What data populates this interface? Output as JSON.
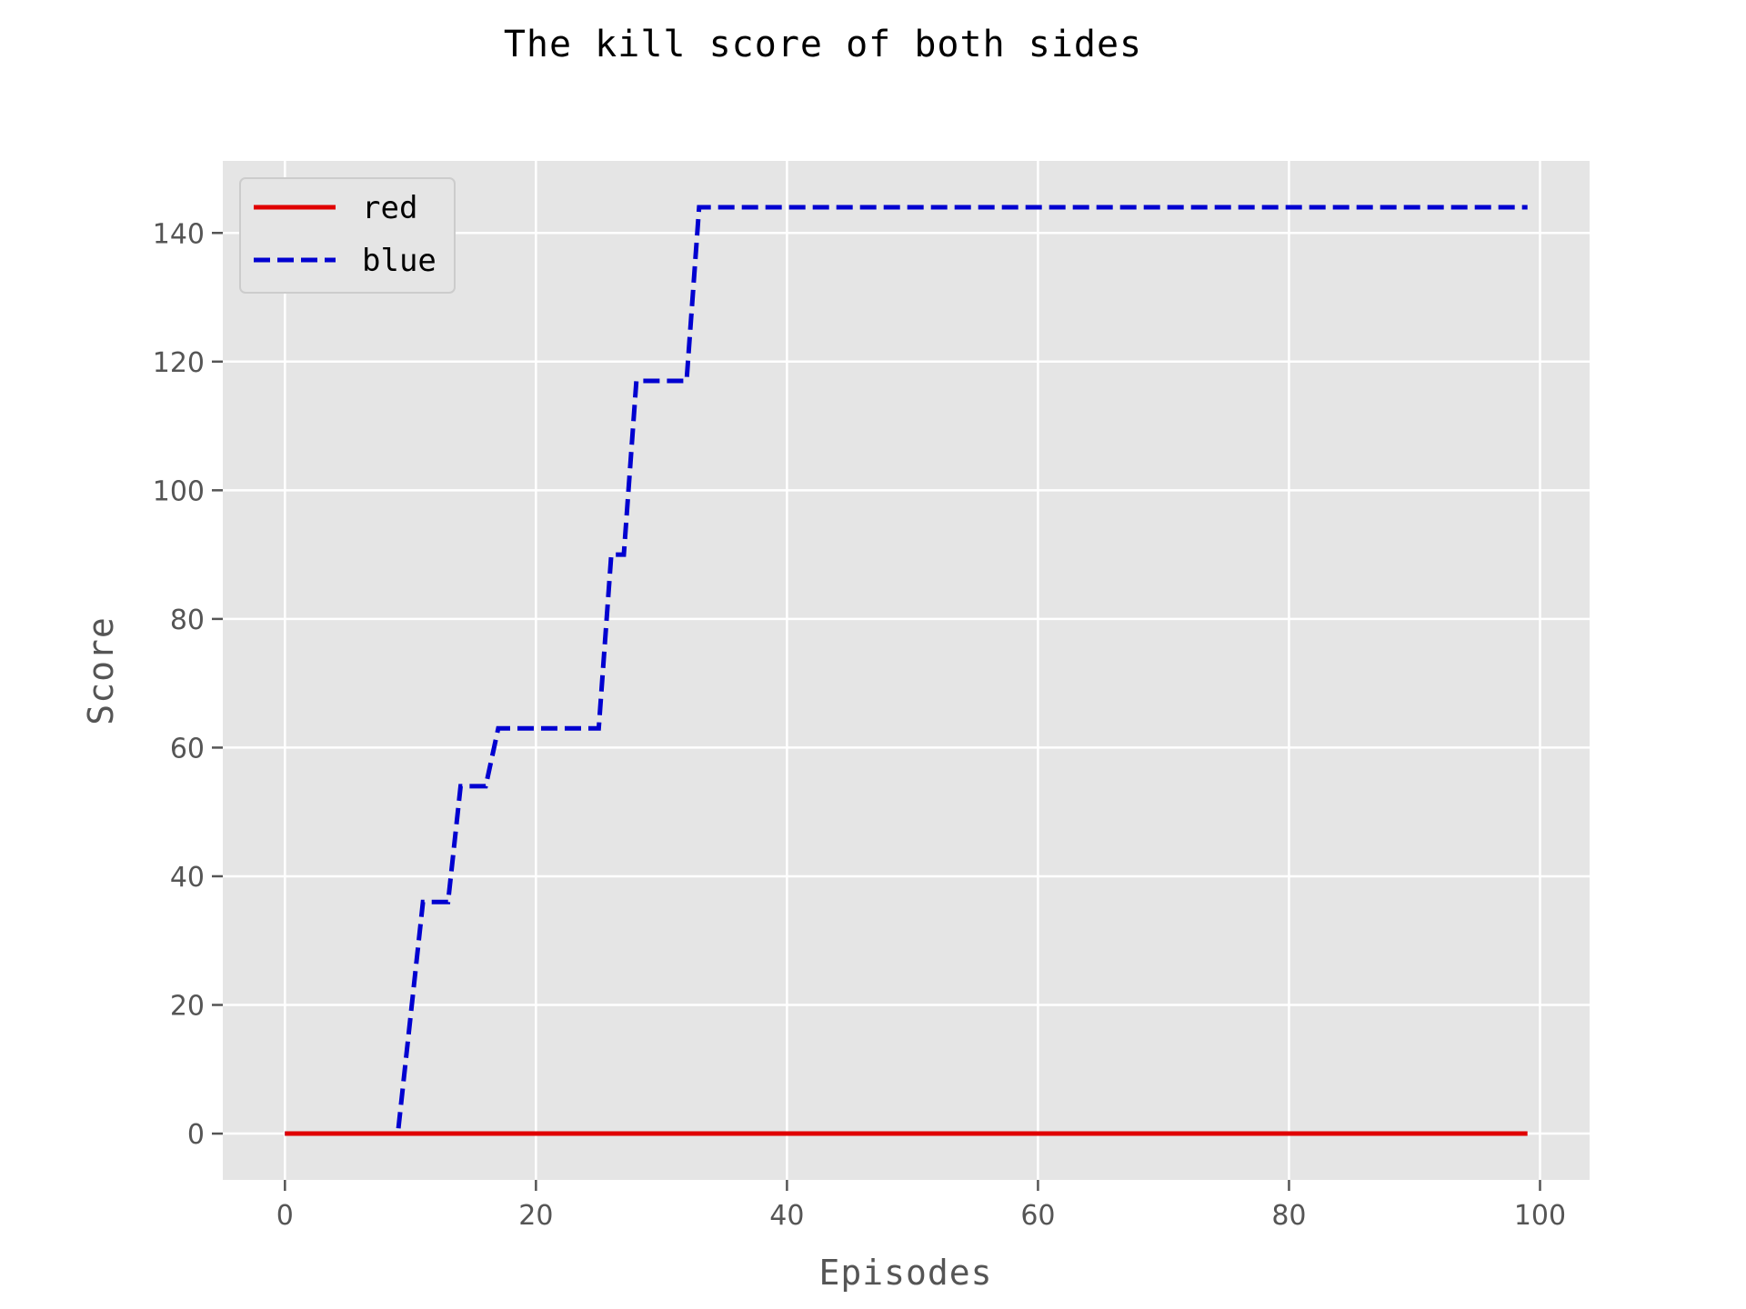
{
  "chart_data": {
    "type": "line",
    "title": "The kill score of both sides",
    "xlabel": "Episodes",
    "ylabel": "Score",
    "xlim": [
      -4.95,
      103.95
    ],
    "ylim": [
      -7.2,
      151.2
    ],
    "xticks": [
      0,
      20,
      40,
      60,
      80,
      100
    ],
    "yticks": [
      0,
      20,
      40,
      60,
      80,
      100,
      120,
      140
    ],
    "grid": true,
    "legend_position": "top-left",
    "series": [
      {
        "name": "red",
        "color": "#e00000",
        "style": "solid",
        "x": [
          0,
          99
        ],
        "y": [
          0,
          0
        ]
      },
      {
        "name": "blue",
        "color": "#0000d0",
        "style": "dashed",
        "x": [
          0,
          9,
          11,
          13,
          14,
          16,
          17,
          25,
          26,
          27,
          28,
          32,
          33,
          99
        ],
        "y": [
          0,
          0,
          36,
          36,
          54,
          54,
          63,
          63,
          90,
          90,
          117,
          117,
          144,
          144
        ]
      }
    ]
  }
}
